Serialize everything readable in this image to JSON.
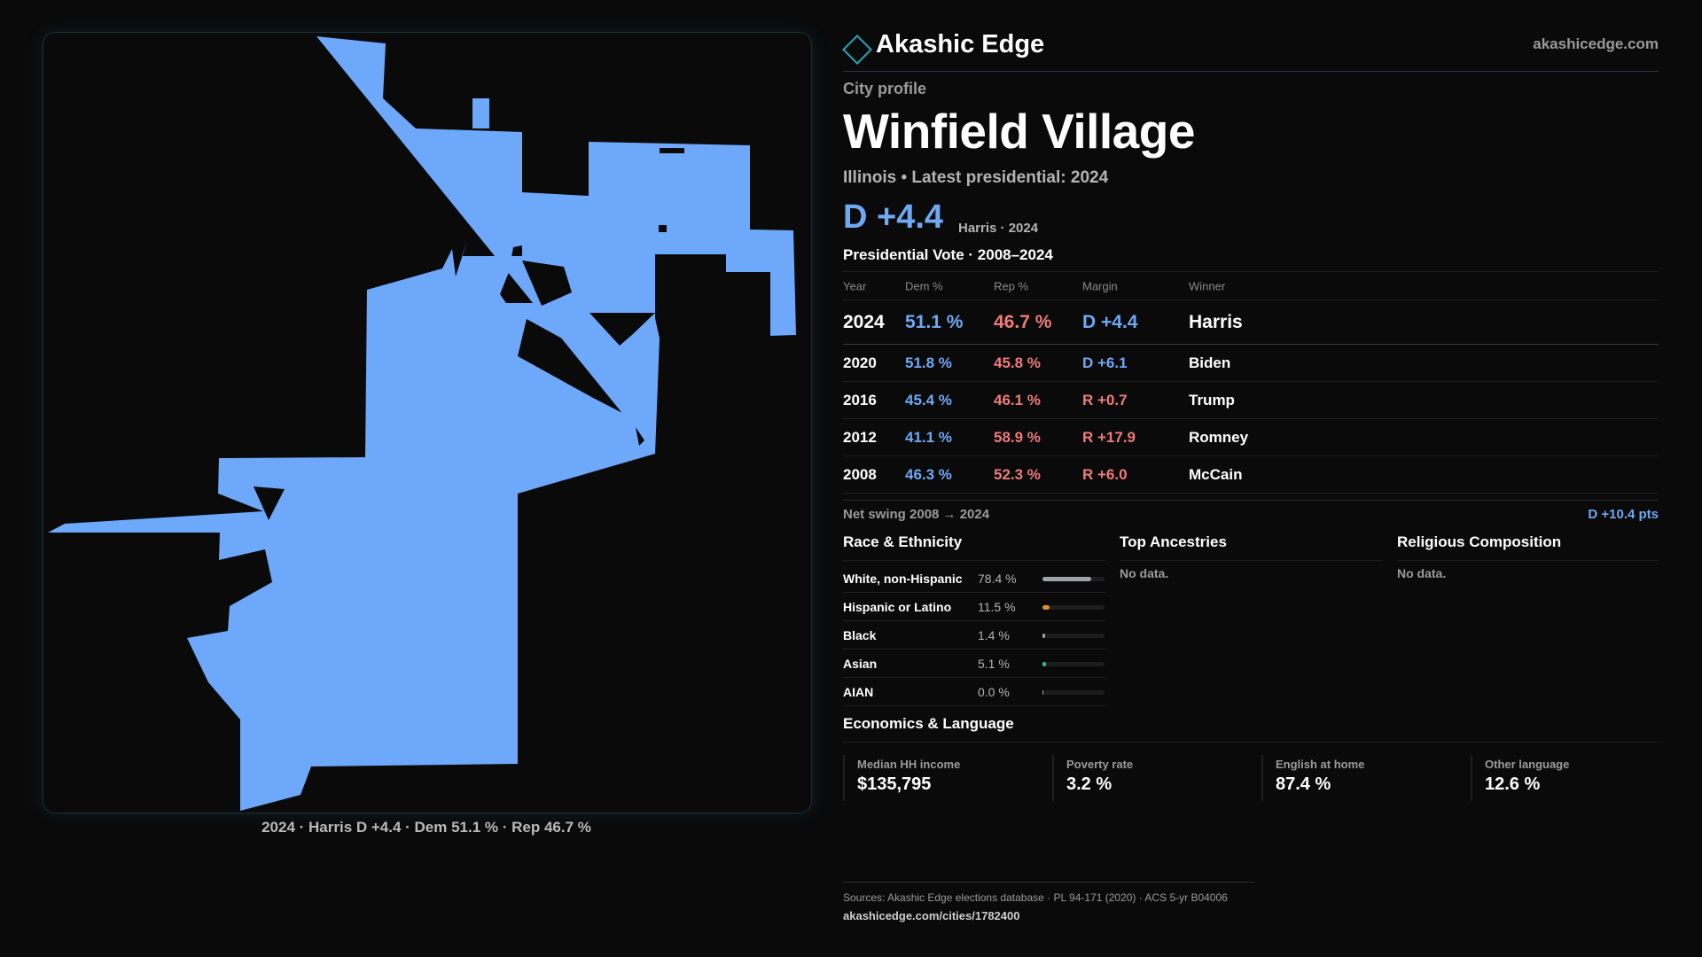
{
  "map": {
    "caption": "2024 · Harris D +4.4 · Dem 51.1 % · Rep 46.7 %",
    "fill_color": "#6ea8fa"
  },
  "header": {
    "brand": "Akashic Edge",
    "site": "akashicedge.com",
    "logo_icon": "diamond-outline"
  },
  "profile": {
    "kicker": "City profile",
    "title": "Winfield Village",
    "subtitle": "Illinois • Latest presidential: 2024",
    "margin": "D +4.4",
    "winner_year": "Harris · 2024"
  },
  "vote_table": {
    "title": "Presidential Vote · 2008–2024",
    "headers": [
      "Year",
      "Dem %",
      "Rep %",
      "Margin",
      "Winner"
    ],
    "rows": [
      {
        "year": "2024",
        "dem": "51.1 %",
        "rep": "46.7 %",
        "margin": "D +4.4",
        "winner": "Harris",
        "party": "dem"
      },
      {
        "year": "2020",
        "dem": "51.8 %",
        "rep": "45.8 %",
        "margin": "D +6.1",
        "winner": "Biden",
        "party": "dem"
      },
      {
        "year": "2016",
        "dem": "45.4 %",
        "rep": "46.1 %",
        "margin": "R +0.7",
        "winner": "Trump",
        "party": "rep"
      },
      {
        "year": "2012",
        "dem": "41.1 %",
        "rep": "58.9 %",
        "margin": "R +17.9",
        "winner": "Romney",
        "party": "rep"
      },
      {
        "year": "2008",
        "dem": "46.3 %",
        "rep": "52.3 %",
        "margin": "R +6.0",
        "winner": "McCain",
        "party": "rep"
      }
    ]
  },
  "swing": {
    "label": "Net swing 2008 → 2024",
    "value": "D +10.4 pts"
  },
  "race": {
    "title": "Race & Ethnicity",
    "rows": [
      {
        "label": "White, non-Hispanic",
        "value": "78.4 %",
        "share": 0.784,
        "color": "#9ea3aa"
      },
      {
        "label": "Hispanic or Latino",
        "value": "11.5 %",
        "share": 0.115,
        "color": "#e0902a"
      },
      {
        "label": "Black",
        "value": "1.4 %",
        "share": 0.014,
        "color": "#9ea3aa"
      },
      {
        "label": "Asian",
        "value": "5.1 %",
        "share": 0.051,
        "color": "#2fbf8a"
      },
      {
        "label": "AIAN",
        "value": "0.0 %",
        "share": 0.0,
        "color": "#9ea3aa"
      }
    ]
  },
  "ancestries": {
    "title": "Top Ancestries",
    "nodata": "No data."
  },
  "religion": {
    "title": "Religious Composition",
    "nodata": "No data."
  },
  "economics": {
    "title": "Economics & Language",
    "cards": [
      {
        "label": "Median HH income",
        "value": "$135,795"
      },
      {
        "label": "Poverty rate",
        "value": "3.2 %"
      },
      {
        "label": "English at home",
        "value": "87.4 %"
      },
      {
        "label": "Other language",
        "value": "12.6 %"
      }
    ]
  },
  "footer": {
    "sources": "Sources: Akashic Edge elections database · PL 94-171 (2020) · ACS 5-yr B04006",
    "url": "akashicedge.com/cities/1782400"
  }
}
